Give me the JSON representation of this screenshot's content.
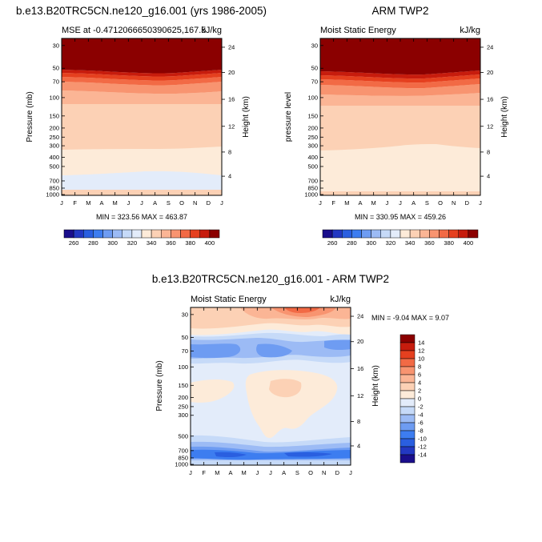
{
  "panels": {
    "model": {
      "title": "b.e13.B20TRC5CN.ne120_g16.001 (yrs 1986-2005)",
      "left_string": "MSE at -0.4712066650390625,167.5",
      "units": "kJ/kg",
      "ylabel": "Pressure (mb)",
      "ylabel_right": "Height (km)",
      "stats": "MIN = 323.56 MAX = 463.87"
    },
    "obs": {
      "title": "ARM TWP2",
      "left_string": "Moist Static Energy",
      "units": "kJ/kg",
      "ylabel": "pressure level",
      "ylabel_right": "Height (km)",
      "stats": "MIN = 330.95 MAX = 459.26"
    },
    "diff": {
      "title": "b.e13.B20TRC5CN.ne120_g16.001 - ARM TWP2",
      "left_string": "Moist Static Energy",
      "units": "kJ/kg",
      "ylabel": "Pressure (mb)",
      "ylabel_right": "Height (km)",
      "stats": "MIN =  -9.04 MAX =   9.07"
    }
  },
  "chart_data": [
    {
      "type": "heatmap",
      "title": "b.e13.B20TRC5CN.ne120_g16.001 (yrs 1986-2005)",
      "months": [
        "J",
        "F",
        "M",
        "A",
        "M",
        "J",
        "J",
        "A",
        "S",
        "O",
        "N",
        "D",
        "J"
      ],
      "pressure_ticks": [
        "30",
        "50",
        "70",
        "100",
        "150",
        "200",
        "250",
        "300",
        "400",
        "500",
        "700",
        "850",
        "1000"
      ],
      "height_ticks": [
        "24",
        "20",
        "16",
        "12",
        "8",
        "4"
      ],
      "colorbar_labels": [
        "260",
        "280",
        "300",
        "320",
        "340",
        "360",
        "380",
        "400"
      ],
      "colorbar_colors": [
        "#1a0e8c",
        "#2338c2",
        "#2a5fe0",
        "#3d7df0",
        "#6e9cf2",
        "#9cbbf5",
        "#c6daf8",
        "#e3ecfa",
        "#fdebd9",
        "#fcd1b5",
        "#fbb595",
        "#f89470",
        "#f26a45",
        "#e5401f",
        "#c71c0d",
        "#8b0000"
      ],
      "bands": [
        {
          "range": "> 400",
          "color": "#8b0000"
        },
        {
          "range": "390-400",
          "color": "#c71c0d"
        },
        {
          "range": "380-390",
          "color": "#e5401f"
        },
        {
          "range": "370-380",
          "color": "#f26a45"
        },
        {
          "range": "360-370",
          "color": "#f89470"
        },
        {
          "range": "350-360",
          "color": "#fbb595"
        },
        {
          "range": "340-350",
          "color": "#fcd1b5"
        },
        {
          "range": "330-340",
          "color": "#fdebd9"
        },
        {
          "range": "320-330",
          "color": "#e3ecfa"
        }
      ],
      "min": 323.56,
      "max": 463.87
    },
    {
      "type": "heatmap",
      "title": "ARM TWP2",
      "months": [
        "J",
        "F",
        "M",
        "A",
        "M",
        "J",
        "J",
        "A",
        "S",
        "O",
        "N",
        "D",
        "J"
      ],
      "pressure_ticks": [
        "30",
        "50",
        "70",
        "100",
        "150",
        "200",
        "250",
        "300",
        "400",
        "500",
        "700",
        "850",
        "1000"
      ],
      "height_ticks": [
        "24",
        "20",
        "16",
        "12",
        "8",
        "4"
      ],
      "colorbar_labels": [
        "260",
        "280",
        "300",
        "320",
        "340",
        "360",
        "380",
        "400"
      ],
      "colorbar_colors": [
        "#1a0e8c",
        "#2338c2",
        "#2a5fe0",
        "#3d7df0",
        "#6e9cf2",
        "#9cbbf5",
        "#c6daf8",
        "#e3ecfa",
        "#fdebd9",
        "#fcd1b5",
        "#fbb595",
        "#f89470",
        "#f26a45",
        "#e5401f",
        "#c71c0d",
        "#8b0000"
      ],
      "min": 330.95,
      "max": 459.26
    },
    {
      "type": "heatmap",
      "title": "b.e13.B20TRC5CN.ne120_g16.001 - ARM TWP2",
      "months": [
        "J",
        "F",
        "M",
        "A",
        "M",
        "J",
        "J",
        "A",
        "S",
        "O",
        "N",
        "D",
        "J"
      ],
      "pressure_ticks": [
        "30",
        "50",
        "70",
        "100",
        "150",
        "200",
        "250",
        "300",
        "500",
        "700",
        "850",
        "1000"
      ],
      "height_ticks": [
        "24",
        "20",
        "16",
        "12",
        "8",
        "4"
      ],
      "colorbar_labels": [
        "14",
        "12",
        "10",
        "8",
        "6",
        "4",
        "2",
        "0",
        "-2",
        "-4",
        "-6",
        "-8",
        "-10",
        "-12",
        "-14"
      ],
      "colorbar_colors": [
        "#8b0000",
        "#c71c0d",
        "#e5401f",
        "#f26a45",
        "#f89470",
        "#fbb595",
        "#fcd1b5",
        "#fdebd9",
        "#e3ecfa",
        "#c6daf8",
        "#9cbbf5",
        "#6e9cf2",
        "#3d7df0",
        "#2a5fe0",
        "#2338c2",
        "#1a0e8c"
      ],
      "min": -9.04,
      "max": 9.07
    }
  ]
}
